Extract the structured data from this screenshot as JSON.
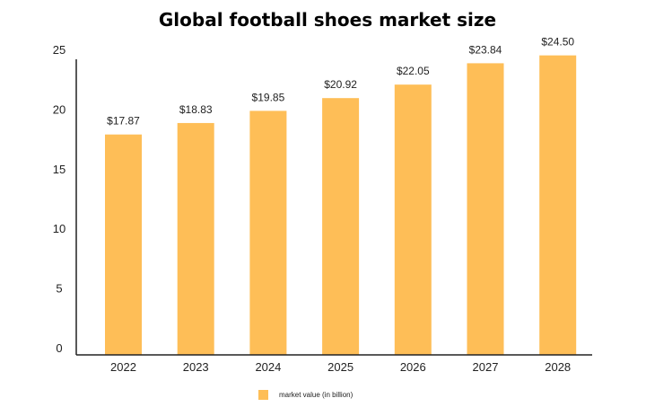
{
  "chart_data": {
    "type": "bar",
    "title": "Global football shoes market size",
    "xlabel": "",
    "ylabel": "",
    "categories": [
      "2022",
      "2023",
      "2024",
      "2025",
      "2026",
      "2027",
      "2028"
    ],
    "series": [
      {
        "name": "market value (in billion)",
        "values": [
          17.87,
          18.83,
          19.85,
          20.92,
          22.05,
          23.84,
          24.5
        ],
        "data_labels": [
          "$17.87",
          "$18.83",
          "$19.85",
          "$20.92",
          "$22.05",
          "$23.84",
          "$24.50"
        ],
        "color": "#FEBE57"
      }
    ],
    "yticks": [
      "0",
      "5",
      "10",
      "15",
      "20",
      "25"
    ],
    "ylim": [
      0,
      25
    ],
    "grid": false,
    "legend": "bottom-center"
  }
}
